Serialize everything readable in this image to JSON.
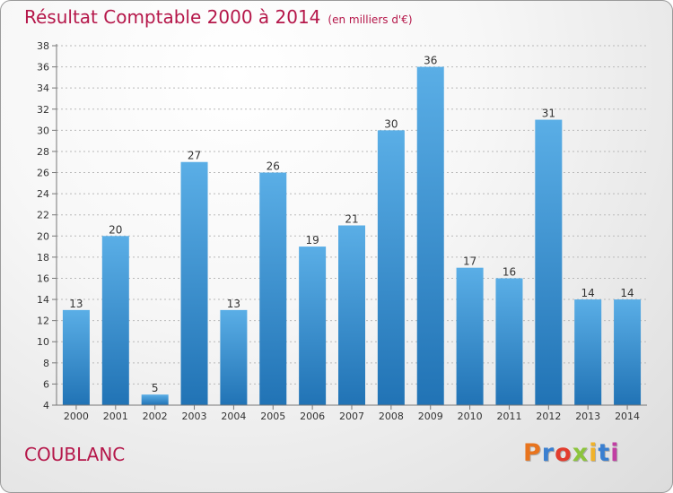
{
  "header": {
    "title": "Résultat Comptable 2000 à 2014",
    "unit": "(en milliers d'€)"
  },
  "footer": {
    "commune": "COUBLANC",
    "logo": "Proxiti",
    "logo_colors": [
      "#e8741e",
      "#3a7fd0",
      "#e23d2e",
      "#8cc43c",
      "#f0b22a",
      "#3a7fd0",
      "#c13fa3"
    ]
  },
  "colors": {
    "bar_top": "#5aaee6",
    "bar_bottom": "#2173b5",
    "grid": "#b9b9b9",
    "title": "#b5174a"
  },
  "chart_data": {
    "type": "bar",
    "title": "Résultat Comptable 2000 à 2014",
    "subtitle": "(en milliers d'€)",
    "categories": [
      "2000",
      "2001",
      "2002",
      "2003",
      "2004",
      "2005",
      "2006",
      "2007",
      "2008",
      "2009",
      "2010",
      "2011",
      "2012",
      "2013",
      "2014"
    ],
    "values": [
      13,
      20,
      5,
      27,
      13,
      26,
      19,
      21,
      30,
      36,
      17,
      16,
      31,
      14,
      14
    ],
    "ylim": [
      4,
      38
    ],
    "yticks": [
      4,
      6,
      8,
      10,
      12,
      14,
      16,
      18,
      20,
      22,
      24,
      26,
      28,
      30,
      32,
      34,
      36,
      38
    ],
    "grid": true,
    "data_labels": true
  }
}
